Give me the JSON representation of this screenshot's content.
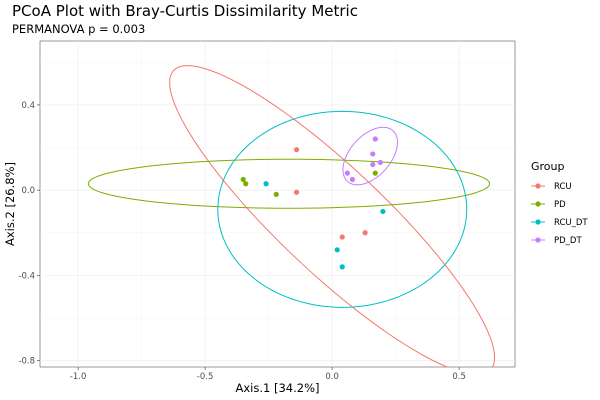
{
  "chart_data": {
    "type": "scatter",
    "title": "PCoA Plot with Bray-Curtis Dissimilarity Metric",
    "subtitle": "PERMANOVA p = 0.003",
    "xlabel": "Axis.1   [34.2%]",
    "ylabel": "Axis.2   [26.8%]",
    "xlim": [
      -1.15,
      0.72
    ],
    "ylim": [
      -0.83,
      0.7
    ],
    "xticks": [
      -1.0,
      -0.5,
      0.0,
      0.5
    ],
    "xtick_labels": [
      "-1.0",
      "-0.5",
      "0.0",
      "0.5"
    ],
    "yticks": [
      0.4,
      0.0,
      -0.4,
      -0.8
    ],
    "ytick_labels": [
      "0.4",
      "0.0",
      "-0.4",
      "-0.8"
    ],
    "grid": true,
    "legend": {
      "title": "Group",
      "position": "right"
    },
    "series": [
      {
        "name": "RCU",
        "color": "#F8766D",
        "points": [
          [
            -0.14,
            0.19
          ],
          [
            -0.14,
            -0.01
          ],
          [
            0.04,
            -0.22
          ],
          [
            0.13,
            -0.2
          ]
        ],
        "ellipse": {
          "cx": 0.0,
          "cy": -0.14,
          "rx": 0.94,
          "ry": 0.225,
          "angle_deg": -49
        }
      },
      {
        "name": "PD",
        "color": "#7CAE00",
        "points": [
          [
            -0.35,
            0.05
          ],
          [
            -0.34,
            0.03
          ],
          [
            -0.22,
            -0.02
          ],
          [
            0.17,
            0.08
          ]
        ],
        "ellipse": {
          "cx": -0.17,
          "cy": 0.03,
          "rx": 0.79,
          "ry": 0.115,
          "angle_deg": 0
        }
      },
      {
        "name": "RCU_DT",
        "color": "#00BFC4",
        "points": [
          [
            -0.26,
            0.03
          ],
          [
            0.2,
            -0.1
          ],
          [
            0.02,
            -0.28
          ],
          [
            0.04,
            -0.36
          ]
        ],
        "ellipse": {
          "cx": 0.04,
          "cy": -0.09,
          "rx": 0.49,
          "ry": 0.46,
          "angle_deg": 0
        }
      },
      {
        "name": "PD_DT",
        "color": "#C77CFF",
        "points": [
          [
            0.17,
            0.24
          ],
          [
            0.16,
            0.17
          ],
          [
            0.19,
            0.13
          ],
          [
            0.16,
            0.12
          ],
          [
            0.06,
            0.08
          ],
          [
            0.08,
            0.05
          ]
        ],
        "ellipse": {
          "cx": 0.15,
          "cy": 0.16,
          "rx": 0.15,
          "ry": 0.085,
          "angle_deg": 58
        }
      }
    ]
  }
}
